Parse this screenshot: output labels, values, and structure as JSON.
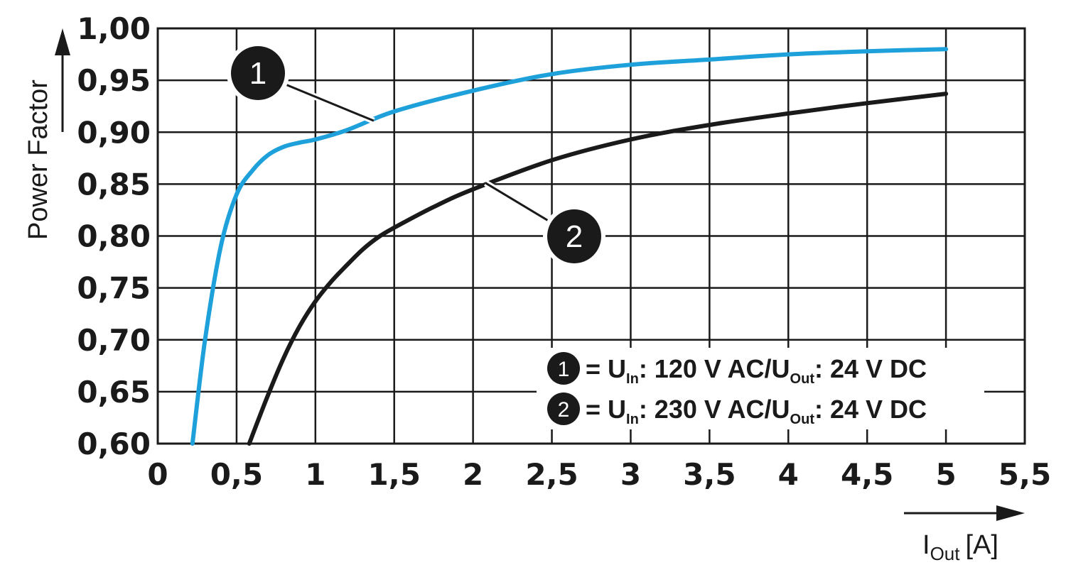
{
  "chart_data": {
    "type": "line",
    "title": "",
    "ylabel": "Power Factor",
    "xlabel": {
      "main": "I",
      "sub": "Out",
      "unit": "[A]"
    },
    "xlim": [
      0,
      5.5
    ],
    "ylim": [
      0.6,
      1.0
    ],
    "xticks": [
      "0",
      "0,5",
      "1",
      "1,5",
      "2",
      "2,5",
      "3",
      "3,5",
      "4",
      "4,5",
      "5",
      "5,5"
    ],
    "yticks": [
      "1,00",
      "0,95",
      "0,90",
      "0,85",
      "0,80",
      "0,75",
      "0,70",
      "0,65",
      "0,60"
    ],
    "grid": true,
    "series": [
      {
        "name": "1",
        "color": "#1ea1db",
        "x": [
          0.22,
          0.3,
          0.4,
          0.5,
          0.6,
          0.7,
          0.8,
          0.9,
          1.0,
          1.2,
          1.5,
          2.0,
          2.5,
          3.0,
          3.5,
          4.0,
          4.5,
          5.0
        ],
        "y": [
          0.6,
          0.7,
          0.79,
          0.84,
          0.863,
          0.878,
          0.886,
          0.89,
          0.893,
          0.902,
          0.92,
          0.94,
          0.956,
          0.965,
          0.97,
          0.975,
          0.978,
          0.98
        ]
      },
      {
        "name": "2",
        "color": "#1a1a1a",
        "x": [
          0.58,
          0.7,
          0.8,
          0.9,
          1.0,
          1.1,
          1.2,
          1.3,
          1.4,
          1.5,
          1.75,
          2.0,
          2.5,
          3.0,
          3.5,
          4.0,
          4.5,
          5.0
        ],
        "y": [
          0.6,
          0.647,
          0.683,
          0.713,
          0.737,
          0.756,
          0.772,
          0.787,
          0.799,
          0.808,
          0.828,
          0.845,
          0.873,
          0.893,
          0.907,
          0.918,
          0.928,
          0.937
        ]
      }
    ],
    "annotations": [
      {
        "label": "1",
        "series": "1",
        "point": [
          1.37,
          0.911
        ]
      },
      {
        "label": "2",
        "series": "2",
        "point": [
          2.08,
          0.851
        ]
      }
    ],
    "legend": {
      "position": "bottom-right",
      "entries": [
        {
          "num": "1",
          "eq": "= ",
          "u": "U",
          "u_sub": "In",
          "mid": ": 120 V AC/U",
          "mid_sub": "Out",
          "end": ": 24 V DC"
        },
        {
          "num": "2",
          "eq": "= ",
          "u": "U",
          "u_sub": "In",
          "mid": ": 230 V AC/U",
          "mid_sub": "Out",
          "end": ": 24 V DC"
        }
      ]
    }
  }
}
